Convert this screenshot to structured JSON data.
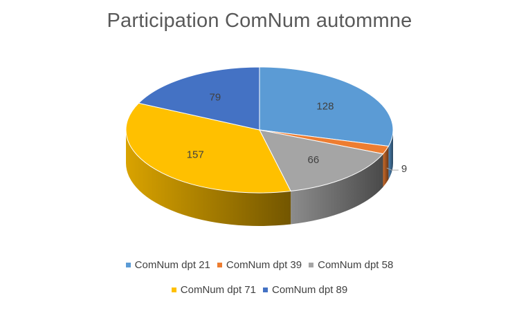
{
  "chart_data": {
    "type": "pie",
    "title": "Participation ComNum autommne",
    "three_d": true,
    "categories": [
      "ComNum dpt 21",
      "ComNum dpt 39",
      "ComNum dpt 58",
      "ComNum dpt 71",
      "ComNum dpt 89"
    ],
    "values": [
      128,
      9,
      66,
      157,
      79
    ],
    "colors": [
      "#5B9BD5",
      "#ED7D31",
      "#A5A5A5",
      "#FFC000",
      "#4472C4"
    ],
    "data_labels": [
      "128",
      "9",
      "66",
      "157",
      "79"
    ],
    "legend_position": "bottom"
  }
}
